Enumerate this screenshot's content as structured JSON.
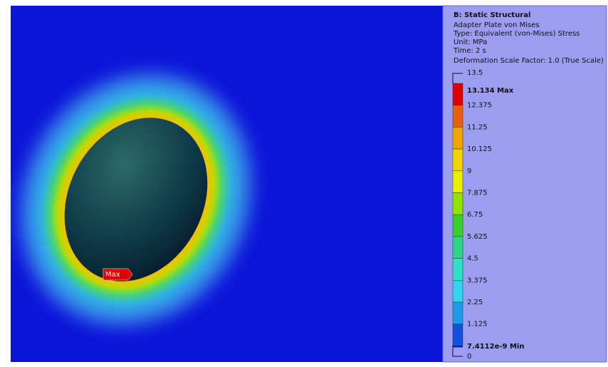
{
  "viewport": {
    "probe_label": "Max"
  },
  "legend": {
    "title": "B: Static Structural",
    "lines": [
      "Adapter Plate von Mises",
      "Type: Equivalent (von-Mises) Stress",
      "Unit: MPa",
      "Time: 2 s",
      "Deformation Scale Factor: 1.0 (True Scale)"
    ],
    "top_label": "13.5",
    "max_label": "13.134 Max",
    "labels": [
      "12.375",
      "11.25",
      "10.125",
      "9",
      "7.875",
      "6.75",
      "5.625",
      "4.5",
      "3.375",
      "2.25",
      "1.125"
    ],
    "min_label": "7.4112e-9 Min",
    "bottom_label": "0",
    "colors": [
      "#dc0000",
      "#e8600c",
      "#f0a400",
      "#f0d400",
      "#e8f000",
      "#90e400",
      "#38d028",
      "#30d488",
      "#30e0c8",
      "#30d4f0",
      "#1c9ce8",
      "#1050dc",
      "#0010c0"
    ]
  }
}
